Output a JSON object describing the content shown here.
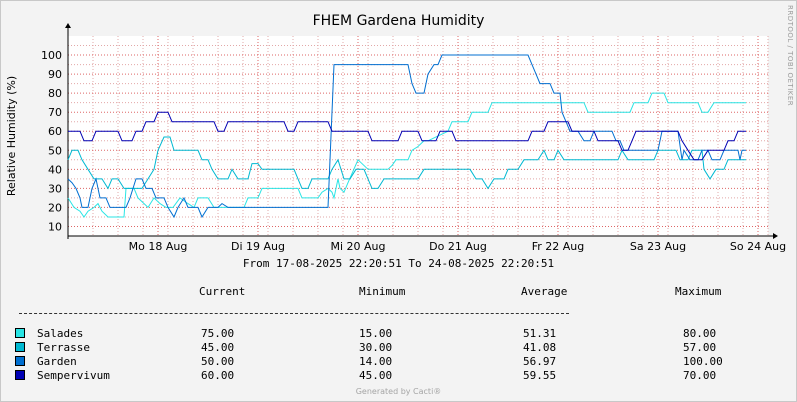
{
  "chart_data": {
    "type": "line",
    "title": "FHEM Gardena Humidity",
    "ylabel": "Relative Humidity (%)",
    "xlabel": "",
    "watermark": "RRDTOOL / TOBI OETIKER",
    "ylim": [
      5,
      110
    ],
    "yticks": [
      10,
      20,
      30,
      40,
      50,
      60,
      70,
      80,
      90,
      100
    ],
    "xlim": [
      0,
      7
    ],
    "xticks": [
      {
        "t": 0.9,
        "label": "Mo 18 Aug"
      },
      {
        "t": 1.9,
        "label": "Di 19 Aug"
      },
      {
        "t": 2.9,
        "label": "Mi 20 Aug"
      },
      {
        "t": 3.9,
        "label": "Do 21 Aug"
      },
      {
        "t": 4.9,
        "label": "Fr 22 Aug"
      },
      {
        "t": 5.9,
        "label": "Sa 23 Aug"
      },
      {
        "t": 6.9,
        "label": "So 24 Aug"
      }
    ],
    "range_text": "From 17-08-2025 22:20:51 To 24-08-2025 22:20:51",
    "series": [
      {
        "name": "Salades",
        "color": "#29e5e5",
        "points": [
          [
            0,
            25
          ],
          [
            0.06,
            20
          ],
          [
            0.12,
            18
          ],
          [
            0.16,
            15
          ],
          [
            0.2,
            18
          ],
          [
            0.26,
            20
          ],
          [
            0.3,
            22
          ],
          [
            0.34,
            18
          ],
          [
            0.4,
            15
          ],
          [
            0.56,
            15
          ],
          [
            0.58,
            30
          ],
          [
            0.66,
            30
          ],
          [
            0.7,
            25
          ],
          [
            0.8,
            20
          ],
          [
            0.86,
            25
          ],
          [
            0.92,
            22
          ],
          [
            0.98,
            20
          ],
          [
            1.05,
            20
          ],
          [
            1.12,
            25
          ],
          [
            1.2,
            22
          ],
          [
            1.26,
            20
          ],
          [
            1.3,
            25
          ],
          [
            1.4,
            25
          ],
          [
            1.46,
            20
          ],
          [
            1.76,
            20
          ],
          [
            1.8,
            25
          ],
          [
            1.9,
            25
          ],
          [
            1.94,
            30
          ],
          [
            2.3,
            30
          ],
          [
            2.34,
            25
          ],
          [
            2.5,
            25
          ],
          [
            2.54,
            28
          ],
          [
            2.6,
            30
          ],
          [
            2.64,
            28
          ],
          [
            2.66,
            25
          ],
          [
            2.7,
            35
          ],
          [
            2.72,
            30
          ],
          [
            2.76,
            28
          ],
          [
            2.8,
            33
          ],
          [
            2.9,
            45
          ],
          [
            3.0,
            40
          ],
          [
            3.2,
            40
          ],
          [
            3.24,
            42
          ],
          [
            3.28,
            45
          ],
          [
            3.4,
            45
          ],
          [
            3.44,
            50
          ],
          [
            3.5,
            52
          ],
          [
            3.56,
            55
          ],
          [
            3.6,
            55
          ],
          [
            3.8,
            60
          ],
          [
            3.84,
            65
          ],
          [
            4.0,
            65
          ],
          [
            4.04,
            70
          ],
          [
            4.2,
            70
          ],
          [
            4.24,
            75
          ],
          [
            5.16,
            75
          ],
          [
            5.2,
            70
          ],
          [
            5.62,
            70
          ],
          [
            5.66,
            75
          ],
          [
            5.8,
            75
          ],
          [
            5.84,
            80
          ],
          [
            5.96,
            80
          ],
          [
            6.0,
            75
          ],
          [
            6.3,
            75
          ],
          [
            6.34,
            70
          ],
          [
            6.4,
            70
          ],
          [
            6.46,
            75
          ],
          [
            6.78,
            75
          ]
        ]
      },
      {
        "name": "Terrasse",
        "color": "#00b9d2",
        "points": [
          [
            0,
            45
          ],
          [
            0.04,
            50
          ],
          [
            0.1,
            50
          ],
          [
            0.14,
            45
          ],
          [
            0.2,
            40
          ],
          [
            0.26,
            35
          ],
          [
            0.34,
            35
          ],
          [
            0.4,
            30
          ],
          [
            0.44,
            35
          ],
          [
            0.5,
            35
          ],
          [
            0.56,
            30
          ],
          [
            0.74,
            30
          ],
          [
            0.8,
            35
          ],
          [
            0.86,
            40
          ],
          [
            0.9,
            50
          ],
          [
            0.96,
            57
          ],
          [
            1.02,
            57
          ],
          [
            1.06,
            50
          ],
          [
            1.3,
            50
          ],
          [
            1.34,
            45
          ],
          [
            1.4,
            45
          ],
          [
            1.44,
            40
          ],
          [
            1.5,
            35
          ],
          [
            1.6,
            35
          ],
          [
            1.64,
            40
          ],
          [
            1.7,
            35
          ],
          [
            1.8,
            35
          ],
          [
            1.84,
            43
          ],
          [
            1.9,
            43
          ],
          [
            1.94,
            40
          ],
          [
            2.26,
            40
          ],
          [
            2.3,
            35
          ],
          [
            2.34,
            30
          ],
          [
            2.4,
            30
          ],
          [
            2.44,
            35
          ],
          [
            2.6,
            35
          ],
          [
            2.64,
            40
          ],
          [
            2.7,
            45
          ],
          [
            2.76,
            35
          ],
          [
            2.82,
            35
          ],
          [
            2.88,
            40
          ],
          [
            2.96,
            40
          ],
          [
            3.0,
            35
          ],
          [
            3.04,
            30
          ],
          [
            3.1,
            30
          ],
          [
            3.16,
            35
          ],
          [
            3.5,
            35
          ],
          [
            3.56,
            40
          ],
          [
            4.02,
            40
          ],
          [
            4.08,
            35
          ],
          [
            4.14,
            35
          ],
          [
            4.2,
            30
          ],
          [
            4.26,
            35
          ],
          [
            4.36,
            35
          ],
          [
            4.4,
            40
          ],
          [
            4.5,
            40
          ],
          [
            4.56,
            45
          ],
          [
            4.7,
            45
          ],
          [
            4.76,
            50
          ],
          [
            4.8,
            45
          ],
          [
            4.86,
            45
          ],
          [
            4.9,
            50
          ],
          [
            4.96,
            45
          ],
          [
            5.5,
            45
          ],
          [
            5.54,
            50
          ],
          [
            5.6,
            45
          ],
          [
            5.86,
            45
          ],
          [
            5.9,
            50
          ],
          [
            6.08,
            50
          ],
          [
            6.12,
            45
          ],
          [
            6.2,
            45
          ],
          [
            6.24,
            50
          ],
          [
            6.34,
            50
          ],
          [
            6.36,
            40
          ],
          [
            6.42,
            35
          ],
          [
            6.48,
            40
          ],
          [
            6.56,
            40
          ],
          [
            6.6,
            45
          ],
          [
            6.78,
            45
          ]
        ]
      },
      {
        "name": "Garden",
        "color": "#006fd1",
        "points": [
          [
            0,
            35
          ],
          [
            0.04,
            33
          ],
          [
            0.08,
            30
          ],
          [
            0.12,
            25
          ],
          [
            0.14,
            20
          ],
          [
            0.2,
            20
          ],
          [
            0.24,
            30
          ],
          [
            0.28,
            35
          ],
          [
            0.32,
            25
          ],
          [
            0.38,
            25
          ],
          [
            0.42,
            20
          ],
          [
            0.58,
            20
          ],
          [
            0.62,
            25
          ],
          [
            0.68,
            35
          ],
          [
            0.74,
            35
          ],
          [
            0.78,
            30
          ],
          [
            0.84,
            30
          ],
          [
            0.88,
            25
          ],
          [
            0.96,
            25
          ],
          [
            1.0,
            20
          ],
          [
            1.06,
            15
          ],
          [
            1.1,
            20
          ],
          [
            1.16,
            25
          ],
          [
            1.2,
            20
          ],
          [
            1.3,
            20
          ],
          [
            1.34,
            15
          ],
          [
            1.4,
            20
          ],
          [
            1.5,
            20
          ],
          [
            1.54,
            22
          ],
          [
            1.6,
            20
          ],
          [
            2.6,
            20
          ],
          [
            2.66,
            95
          ],
          [
            3.4,
            95
          ],
          [
            3.44,
            85
          ],
          [
            3.48,
            80
          ],
          [
            3.56,
            80
          ],
          [
            3.6,
            90
          ],
          [
            3.66,
            95
          ],
          [
            3.7,
            95
          ],
          [
            3.74,
            100
          ],
          [
            4.6,
            100
          ],
          [
            4.64,
            95
          ],
          [
            4.68,
            90
          ],
          [
            4.72,
            85
          ],
          [
            4.82,
            85
          ],
          [
            4.86,
            80
          ],
          [
            4.92,
            80
          ],
          [
            4.94,
            70
          ],
          [
            4.98,
            65
          ],
          [
            5.02,
            60
          ],
          [
            5.1,
            60
          ],
          [
            5.16,
            55
          ],
          [
            5.22,
            55
          ],
          [
            5.26,
            60
          ],
          [
            5.44,
            60
          ],
          [
            5.48,
            55
          ],
          [
            5.52,
            55
          ],
          [
            5.56,
            50
          ],
          [
            5.9,
            50
          ],
          [
            5.94,
            60
          ],
          [
            6.1,
            60
          ],
          [
            6.14,
            45
          ],
          [
            6.16,
            50
          ],
          [
            6.22,
            45
          ],
          [
            6.3,
            45
          ],
          [
            6.34,
            50
          ],
          [
            6.4,
            50
          ],
          [
            6.44,
            45
          ],
          [
            6.52,
            45
          ],
          [
            6.56,
            50
          ],
          [
            6.7,
            50
          ],
          [
            6.72,
            45
          ],
          [
            6.74,
            50
          ],
          [
            6.78,
            50
          ]
        ]
      },
      {
        "name": "Sempervivum",
        "color": "#0000b4",
        "points": [
          [
            0,
            60
          ],
          [
            0.12,
            60
          ],
          [
            0.16,
            55
          ],
          [
            0.24,
            55
          ],
          [
            0.28,
            60
          ],
          [
            0.5,
            60
          ],
          [
            0.54,
            55
          ],
          [
            0.64,
            55
          ],
          [
            0.68,
            60
          ],
          [
            0.74,
            60
          ],
          [
            0.78,
            65
          ],
          [
            0.86,
            65
          ],
          [
            0.9,
            70
          ],
          [
            1.0,
            70
          ],
          [
            1.04,
            65
          ],
          [
            1.46,
            65
          ],
          [
            1.5,
            60
          ],
          [
            1.56,
            60
          ],
          [
            1.6,
            65
          ],
          [
            2.16,
            65
          ],
          [
            2.2,
            60
          ],
          [
            2.26,
            60
          ],
          [
            2.3,
            65
          ],
          [
            2.6,
            65
          ],
          [
            2.64,
            60
          ],
          [
            3.0,
            60
          ],
          [
            3.04,
            55
          ],
          [
            3.3,
            55
          ],
          [
            3.34,
            60
          ],
          [
            3.5,
            60
          ],
          [
            3.54,
            55
          ],
          [
            3.68,
            55
          ],
          [
            3.72,
            60
          ],
          [
            3.84,
            60
          ],
          [
            3.88,
            55
          ],
          [
            4.6,
            55
          ],
          [
            4.64,
            60
          ],
          [
            4.76,
            60
          ],
          [
            4.8,
            65
          ],
          [
            5.0,
            65
          ],
          [
            5.04,
            60
          ],
          [
            5.26,
            60
          ],
          [
            5.3,
            55
          ],
          [
            5.5,
            55
          ],
          [
            5.54,
            50
          ],
          [
            5.6,
            50
          ],
          [
            5.64,
            55
          ],
          [
            5.68,
            60
          ],
          [
            6.1,
            60
          ],
          [
            6.14,
            55
          ],
          [
            6.2,
            50
          ],
          [
            6.26,
            45
          ],
          [
            6.34,
            45
          ],
          [
            6.4,
            50
          ],
          [
            6.56,
            50
          ],
          [
            6.6,
            55
          ],
          [
            6.66,
            55
          ],
          [
            6.7,
            60
          ],
          [
            6.78,
            60
          ]
        ]
      }
    ]
  },
  "legend": {
    "headers": {
      "current": "Current",
      "minimum": "Minimum",
      "average": "Average",
      "maximum": "Maximum"
    },
    "rows": [
      {
        "name": "Salades",
        "color": "#29e5e5",
        "current": "75.00",
        "minimum": "15.00",
        "average": "51.31",
        "maximum": "80.00"
      },
      {
        "name": "Terrasse",
        "color": "#00b9d2",
        "current": "45.00",
        "minimum": "30.00",
        "average": "41.08",
        "maximum": "57.00"
      },
      {
        "name": "Garden",
        "color": "#006fd1",
        "current": "50.00",
        "minimum": "14.00",
        "average": "56.97",
        "maximum": "100.00"
      },
      {
        "name": "Sempervivum",
        "color": "#0000b4",
        "current": "60.00",
        "minimum": "45.00",
        "average": "59.55",
        "maximum": "70.00"
      }
    ]
  },
  "footer": "Generated by Cacti®"
}
